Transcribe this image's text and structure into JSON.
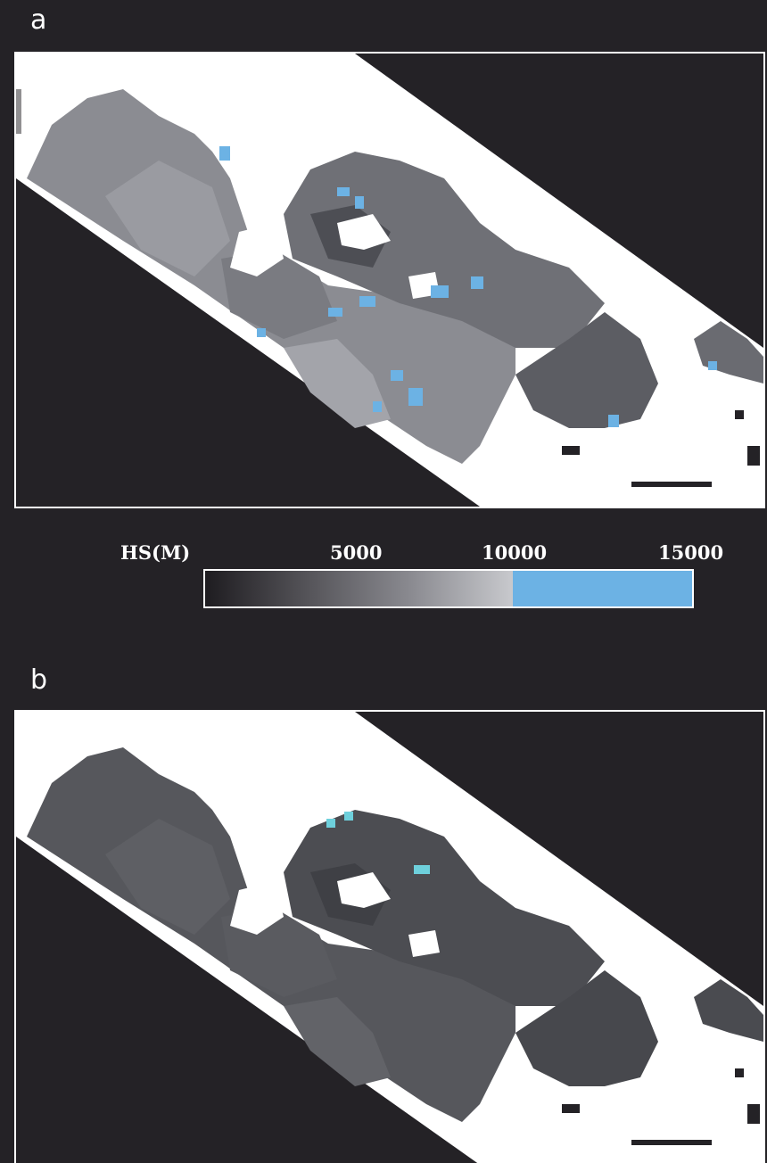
{
  "panel_a": {
    "letter": "a"
  },
  "panel_b": {
    "letter": "b"
  },
  "legend": {
    "variable_label": "HS(M)",
    "tick_labels": [
      "5000",
      "10000",
      "15000"
    ],
    "min": 0,
    "max": 15000,
    "gradient_stops": [
      "#1e1c20",
      "#555459",
      "#8a8a90",
      "#c8c9cd"
    ],
    "high_color": "#6cb2e4",
    "threshold": 10000
  },
  "colors": {
    "background": "#242226",
    "no_data": "#ffffff",
    "high_a": "#6cb2e4",
    "high_b": "#6ed0dc"
  }
}
